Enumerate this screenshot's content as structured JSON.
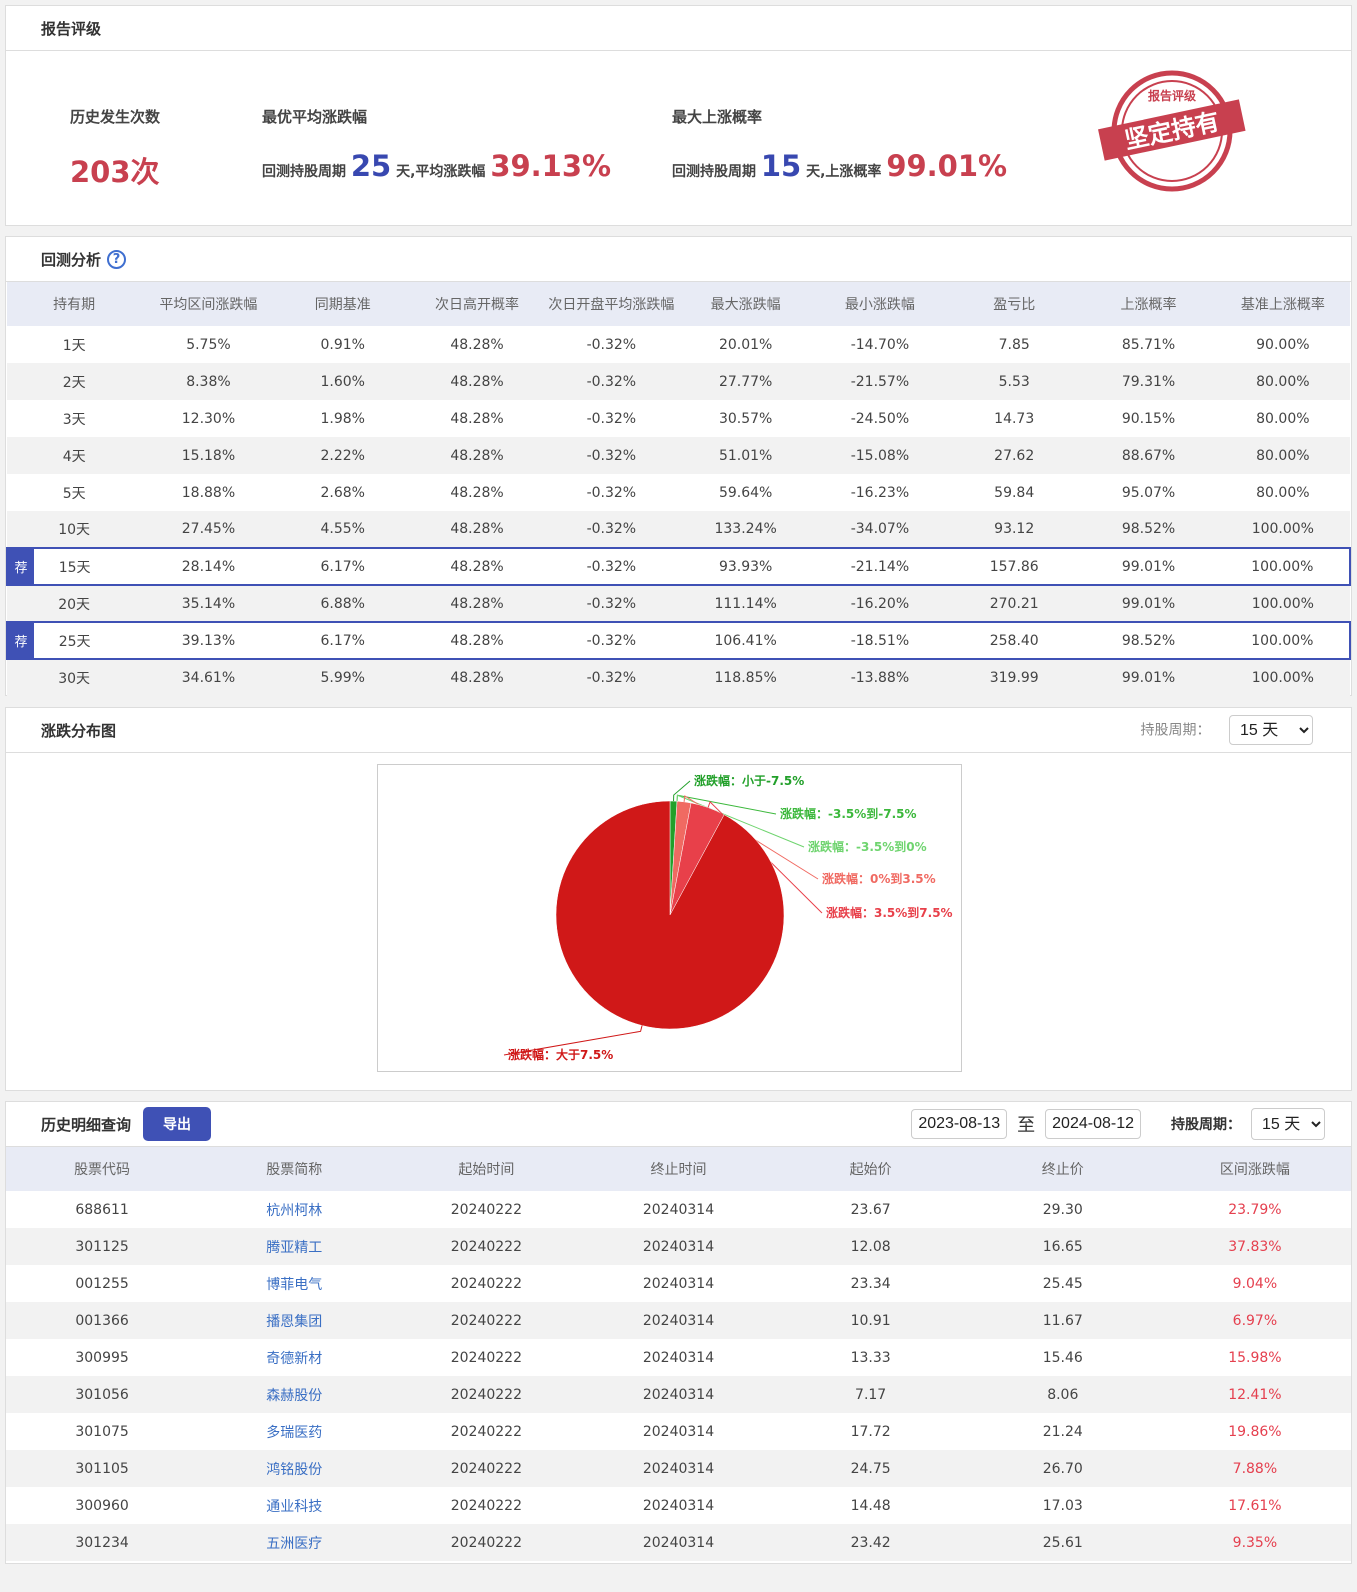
{
  "rating": {
    "title": "报告评级",
    "count_label": "历史发生次数",
    "count_value": "203次",
    "best_avg_label": "最优平均涨跌幅",
    "best_avg_prefix": "回测持股周期",
    "best_avg_days": "25",
    "best_avg_mid": "天,平均涨跌幅",
    "best_avg_value": "39.13%",
    "max_up_label": "最大上涨概率",
    "max_up_prefix": "回测持股周期",
    "max_up_days": "15",
    "max_up_mid": "天,上涨概率",
    "max_up_value": "99.01%",
    "stamp_top": "报告评级",
    "stamp_main": "坚定持有"
  },
  "backtest": {
    "title": "回测分析",
    "help_icon": "question-circle-icon",
    "badge": "荐",
    "columns": [
      "持有期",
      "平均区间涨跌幅",
      "同期基准",
      "次日高开概率",
      "次日开盘平均涨跌幅",
      "最大涨跌幅",
      "最小涨跌幅",
      "盈亏比",
      "上涨概率",
      "基准上涨概率"
    ],
    "rows": [
      [
        "1天",
        "5.75%",
        "0.91%",
        "48.28%",
        "-0.32%",
        "20.01%",
        "-14.70%",
        "7.85",
        "85.71%",
        "90.00%"
      ],
      [
        "2天",
        "8.38%",
        "1.60%",
        "48.28%",
        "-0.32%",
        "27.77%",
        "-21.57%",
        "5.53",
        "79.31%",
        "80.00%"
      ],
      [
        "3天",
        "12.30%",
        "1.98%",
        "48.28%",
        "-0.32%",
        "30.57%",
        "-24.50%",
        "14.73",
        "90.15%",
        "80.00%"
      ],
      [
        "4天",
        "15.18%",
        "2.22%",
        "48.28%",
        "-0.32%",
        "51.01%",
        "-15.08%",
        "27.62",
        "88.67%",
        "80.00%"
      ],
      [
        "5天",
        "18.88%",
        "2.68%",
        "48.28%",
        "-0.32%",
        "59.64%",
        "-16.23%",
        "59.84",
        "95.07%",
        "80.00%"
      ],
      [
        "10天",
        "27.45%",
        "4.55%",
        "48.28%",
        "-0.32%",
        "133.24%",
        "-34.07%",
        "93.12",
        "98.52%",
        "100.00%"
      ],
      [
        "15天",
        "28.14%",
        "6.17%",
        "48.28%",
        "-0.32%",
        "93.93%",
        "-21.14%",
        "157.86",
        "99.01%",
        "100.00%"
      ],
      [
        "20天",
        "35.14%",
        "6.88%",
        "48.28%",
        "-0.32%",
        "111.14%",
        "-16.20%",
        "270.21",
        "99.01%",
        "100.00%"
      ],
      [
        "25天",
        "39.13%",
        "6.17%",
        "48.28%",
        "-0.32%",
        "106.41%",
        "-18.51%",
        "258.40",
        "98.52%",
        "100.00%"
      ],
      [
        "30天",
        "34.61%",
        "5.99%",
        "48.28%",
        "-0.32%",
        "118.85%",
        "-13.88%",
        "319.99",
        "99.01%",
        "100.00%"
      ]
    ],
    "recommended": [
      6,
      8
    ]
  },
  "distribution": {
    "title": "涨跌分布图",
    "period_label": "持股周期：",
    "period_value": "15 天"
  },
  "chart_data": {
    "type": "pie",
    "slices": [
      {
        "name": "涨跌幅：小于-7.5%",
        "value": 2,
        "color": "#22a02a"
      },
      {
        "name": "涨跌幅：-3.5%到-7.5%",
        "value": 0,
        "color": "#3cb83c"
      },
      {
        "name": "涨跌幅：-3.5%到0%",
        "value": 0,
        "color": "#6fd46f"
      },
      {
        "name": "涨跌幅：0%到3.5%",
        "value": 4,
        "color": "#f06a62"
      },
      {
        "name": "涨跌幅：3.5%到7.5%",
        "value": 10,
        "color": "#e8404a"
      },
      {
        "name": "涨跌幅：大于7.5%",
        "value": 187,
        "color": "#d01818"
      }
    ]
  },
  "history": {
    "title": "历史明细查询",
    "export_label": "导出",
    "start_date": "2023-08-13",
    "to_label": "至",
    "end_date": "2024-08-12",
    "period_label": "持股周期：",
    "period_value": "15 天",
    "columns": [
      "股票代码",
      "股票简称",
      "起始时间",
      "终止时间",
      "起始价",
      "终止价",
      "区间涨跌幅"
    ],
    "rows": [
      [
        "688611",
        "杭州柯林",
        "20240222",
        "20240314",
        "23.67",
        "29.30",
        "23.79%"
      ],
      [
        "301125",
        "腾亚精工",
        "20240222",
        "20240314",
        "12.08",
        "16.65",
        "37.83%"
      ],
      [
        "001255",
        "博菲电气",
        "20240222",
        "20240314",
        "23.34",
        "25.45",
        "9.04%"
      ],
      [
        "001366",
        "播恩集团",
        "20240222",
        "20240314",
        "10.91",
        "11.67",
        "6.97%"
      ],
      [
        "300995",
        "奇德新材",
        "20240222",
        "20240314",
        "13.33",
        "15.46",
        "15.98%"
      ],
      [
        "301056",
        "森赫股份",
        "20240222",
        "20240314",
        "7.17",
        "8.06",
        "12.41%"
      ],
      [
        "301075",
        "多瑞医药",
        "20240222",
        "20240314",
        "17.72",
        "21.24",
        "19.86%"
      ],
      [
        "301105",
        "鸿铭股份",
        "20240222",
        "20240314",
        "24.75",
        "26.70",
        "7.88%"
      ],
      [
        "300960",
        "通业科技",
        "20240222",
        "20240314",
        "14.48",
        "17.03",
        "17.61%"
      ],
      [
        "301234",
        "五洲医疗",
        "20240222",
        "20240314",
        "23.42",
        "25.61",
        "9.35%"
      ]
    ]
  }
}
